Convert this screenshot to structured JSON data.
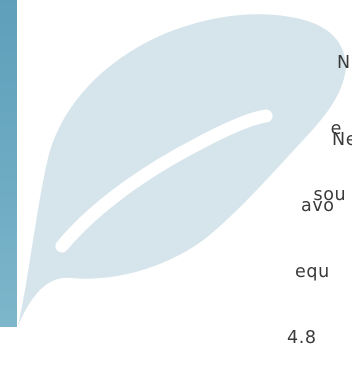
{
  "colors": {
    "stripe": "#6aa9c1",
    "leaf": "#d6e5eb",
    "leaf_vein": "#ffffff",
    "text": "#3a3a3a"
  },
  "icons": {
    "leaf": "leaf-icon"
  },
  "text_block_1": {
    "line1": "N",
    "line2": "e",
    "line3": "sou"
  },
  "text_block_2": {
    "line1": "Ne",
    "line2": "avo",
    "line3": "equ",
    "line4": "4.8"
  }
}
